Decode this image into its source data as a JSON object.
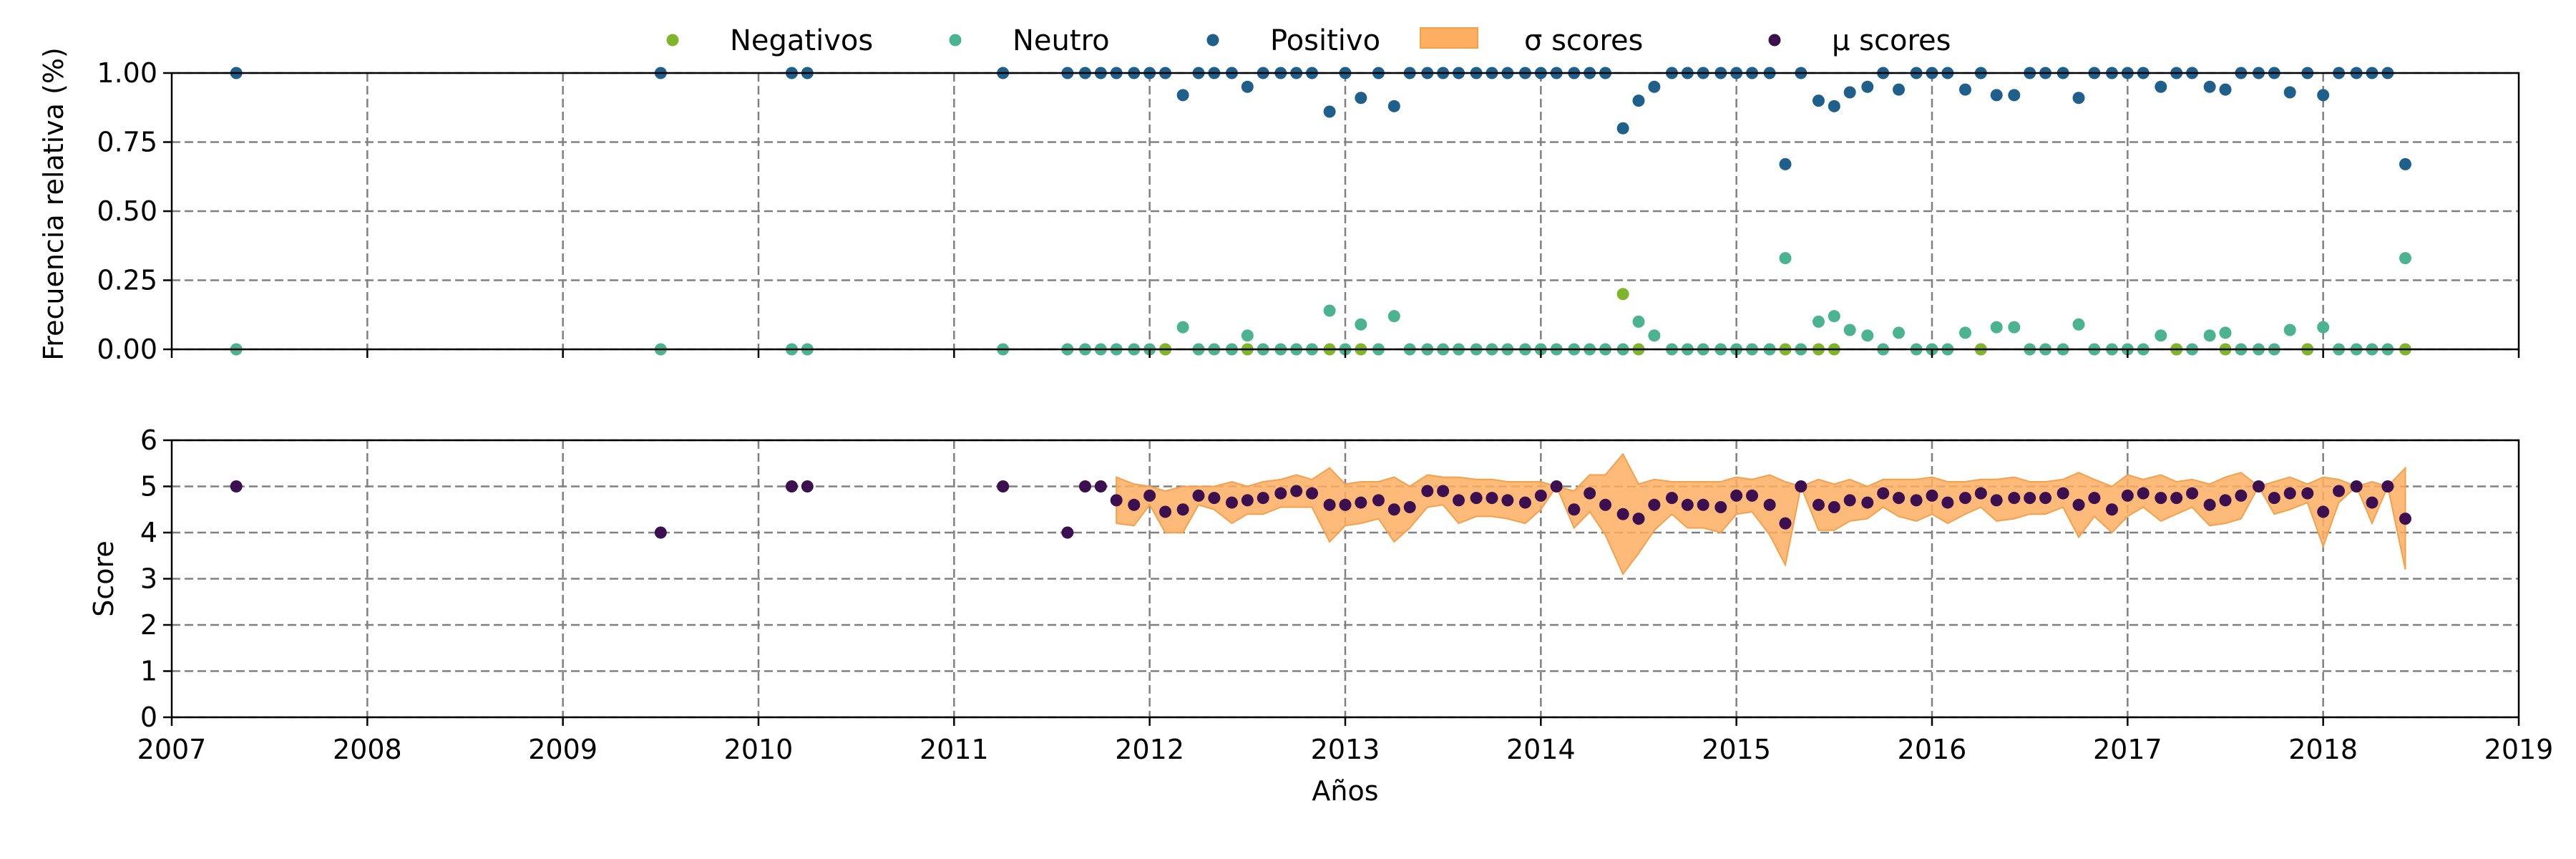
{
  "chart_data": [
    {
      "type": "scatter",
      "xlim": [
        2007,
        2019
      ],
      "ylim": [
        0,
        1
      ],
      "xlabel": "",
      "ylabel": "Frecuencia relativa (%)",
      "yticks": [
        "0.00",
        "0.25",
        "0.50",
        "0.75",
        "1.00"
      ],
      "ytick_values": [
        0,
        0.25,
        0.5,
        0.75,
        1.0
      ],
      "grid": true,
      "legend": {
        "placement": "top-center",
        "entries": [
          "Negativos",
          "Neutro",
          "Positivo",
          "σ scores",
          "μ scores"
        ]
      },
      "series": [
        {
          "name": "Positivo",
          "color": "#1f5f8b",
          "x": [
            2007.33,
            2009.5,
            2010.17,
            2010.25,
            2011.25,
            2011.58,
            2011.67,
            2011.75,
            2011.83,
            2011.92,
            2012.0,
            2012.08,
            2012.17,
            2012.25,
            2012.33,
            2012.42,
            2012.5,
            2012.58,
            2012.67,
            2012.75,
            2012.83,
            2012.92,
            2013.0,
            2013.08,
            2013.17,
            2013.25,
            2013.33,
            2013.42,
            2013.5,
            2013.58,
            2013.67,
            2013.75,
            2013.83,
            2013.92,
            2014.0,
            2014.08,
            2014.17,
            2014.25,
            2014.33,
            2014.42,
            2014.5,
            2014.58,
            2014.67,
            2014.75,
            2014.83,
            2014.92,
            2015.0,
            2015.08,
            2015.17,
            2015.25,
            2015.33,
            2015.42,
            2015.5,
            2015.58,
            2015.67,
            2015.75,
            2015.83,
            2015.92,
            2016.0,
            2016.08,
            2016.17,
            2016.25,
            2016.33,
            2016.42,
            2016.5,
            2016.58,
            2016.67,
            2016.75,
            2016.83,
            2016.92,
            2017.0,
            2017.08,
            2017.17,
            2017.25,
            2017.33,
            2017.42,
            2017.5,
            2017.58,
            2017.67,
            2017.75,
            2017.83,
            2017.92,
            2018.0,
            2018.08,
            2018.17,
            2018.25,
            2018.33,
            2018.42
          ],
          "y": [
            1,
            1,
            1,
            1,
            1,
            1,
            1,
            1,
            1,
            1,
            1,
            1,
            0.92,
            1,
            1,
            1,
            0.95,
            1,
            1,
            1,
            1,
            0.86,
            1,
            0.91,
            1,
            0.88,
            1,
            1,
            1,
            1,
            1,
            1,
            1,
            1,
            1,
            1,
            1,
            1,
            1,
            0.8,
            0.9,
            0.95,
            1,
            1,
            1,
            1,
            1,
            1,
            1,
            0.67,
            1,
            0.9,
            0.88,
            0.93,
            0.95,
            1,
            0.94,
            1,
            1,
            1,
            0.94,
            1,
            0.92,
            0.92,
            1,
            1,
            1,
            0.91,
            1,
            1,
            1,
            1,
            0.95,
            1,
            1,
            0.95,
            0.94,
            1,
            1,
            1,
            0.93,
            1,
            0.92,
            1,
            1,
            1,
            1,
            0.67
          ]
        },
        {
          "name": "Neutro",
          "color": "#4cb391",
          "x": [
            2007.33,
            2009.5,
            2010.17,
            2010.25,
            2011.25,
            2011.58,
            2011.67,
            2011.75,
            2011.83,
            2011.92,
            2012.0,
            2012.08,
            2012.17,
            2012.25,
            2012.33,
            2012.42,
            2012.5,
            2012.58,
            2012.67,
            2012.75,
            2012.83,
            2012.92,
            2013.0,
            2013.08,
            2013.17,
            2013.25,
            2013.33,
            2013.42,
            2013.5,
            2013.58,
            2013.67,
            2013.75,
            2013.83,
            2013.92,
            2014.0,
            2014.08,
            2014.17,
            2014.25,
            2014.33,
            2014.42,
            2014.5,
            2014.58,
            2014.67,
            2014.75,
            2014.83,
            2014.92,
            2015.0,
            2015.08,
            2015.17,
            2015.25,
            2015.33,
            2015.42,
            2015.5,
            2015.58,
            2015.67,
            2015.75,
            2015.83,
            2015.92,
            2016.0,
            2016.08,
            2016.17,
            2016.25,
            2016.33,
            2016.42,
            2016.5,
            2016.58,
            2016.67,
            2016.75,
            2016.83,
            2016.92,
            2017.0,
            2017.08,
            2017.17,
            2017.25,
            2017.33,
            2017.42,
            2017.5,
            2017.58,
            2017.67,
            2017.75,
            2017.83,
            2017.92,
            2018.0,
            2018.08,
            2018.17,
            2018.25,
            2018.33,
            2018.42
          ],
          "y": [
            0,
            0,
            0,
            0,
            0,
            0,
            0,
            0,
            0,
            0,
            0,
            0,
            0.08,
            0,
            0,
            0,
            0.05,
            0,
            0,
            0,
            0,
            0.14,
            0,
            0.09,
            0,
            0.12,
            0,
            0,
            0,
            0,
            0,
            0,
            0,
            0,
            0,
            0,
            0,
            0,
            0,
            0,
            0.1,
            0.05,
            0,
            0,
            0,
            0,
            0,
            0,
            0,
            0.33,
            0,
            0.1,
            0.12,
            0.07,
            0.05,
            0,
            0.06,
            0,
            0,
            0,
            0.06,
            0,
            0.08,
            0.08,
            0,
            0,
            0,
            0.09,
            0,
            0,
            0,
            0,
            0.05,
            0,
            0,
            0.05,
            0.06,
            0,
            0,
            0,
            0.07,
            0,
            0.08,
            0,
            0,
            0,
            0,
            0.33
          ]
        },
        {
          "name": "Negativos",
          "color": "#7fb52b",
          "x": [
            2012.08,
            2012.5,
            2012.92,
            2013.08,
            2014.42,
            2014.5,
            2015.25,
            2015.42,
            2015.5,
            2016.25,
            2017.25,
            2017.5,
            2017.92,
            2018.42
          ],
          "y": [
            0,
            0,
            0,
            0,
            0.2,
            0,
            0,
            0,
            0,
            0,
            0,
            0,
            0,
            0
          ]
        }
      ]
    },
    {
      "type": "line",
      "xlim": [
        2007,
        2019
      ],
      "ylim": [
        0,
        6
      ],
      "xlabel": "Años",
      "ylabel": "Score",
      "xticks": [
        "2007",
        "2008",
        "2009",
        "2010",
        "2011",
        "2012",
        "2013",
        "2014",
        "2015",
        "2016",
        "2017",
        "2018",
        "2019"
      ],
      "xtick_values": [
        2007,
        2008,
        2009,
        2010,
        2011,
        2012,
        2013,
        2014,
        2015,
        2016,
        2017,
        2018,
        2019
      ],
      "yticks": [
        "0",
        "1",
        "2",
        "3",
        "4",
        "5",
        "6"
      ],
      "ytick_values": [
        0,
        1,
        2,
        3,
        4,
        5,
        6
      ],
      "grid": true,
      "series": [
        {
          "name": "μ scores",
          "color": "#3b0f50",
          "x": [
            2007.33,
            2009.5,
            2010.17,
            2010.25,
            2011.25,
            2011.58,
            2011.67,
            2011.75,
            2011.83,
            2011.92,
            2012.0,
            2012.08,
            2012.17,
            2012.25,
            2012.33,
            2012.42,
            2012.5,
            2012.58,
            2012.67,
            2012.75,
            2012.83,
            2012.92,
            2013.0,
            2013.08,
            2013.17,
            2013.25,
            2013.33,
            2013.42,
            2013.5,
            2013.58,
            2013.67,
            2013.75,
            2013.83,
            2013.92,
            2014.0,
            2014.08,
            2014.17,
            2014.25,
            2014.33,
            2014.42,
            2014.5,
            2014.58,
            2014.67,
            2014.75,
            2014.83,
            2014.92,
            2015.0,
            2015.08,
            2015.17,
            2015.25,
            2015.33,
            2015.42,
            2015.5,
            2015.58,
            2015.67,
            2015.75,
            2015.83,
            2015.92,
            2016.0,
            2016.08,
            2016.17,
            2016.25,
            2016.33,
            2016.42,
            2016.5,
            2016.58,
            2016.67,
            2016.75,
            2016.83,
            2016.92,
            2017.0,
            2017.08,
            2017.17,
            2017.25,
            2017.33,
            2017.42,
            2017.5,
            2017.58,
            2017.67,
            2017.75,
            2017.83,
            2017.92,
            2018.0,
            2018.08,
            2018.17,
            2018.25,
            2018.33,
            2018.42
          ],
          "y": [
            5,
            4,
            5,
            5,
            5,
            4,
            5,
            5,
            4.7,
            4.6,
            4.8,
            4.45,
            4.5,
            4.8,
            4.75,
            4.65,
            4.7,
            4.75,
            4.85,
            4.9,
            4.85,
            4.6,
            4.6,
            4.65,
            4.7,
            4.5,
            4.55,
            4.9,
            4.9,
            4.7,
            4.75,
            4.75,
            4.7,
            4.65,
            4.8,
            5,
            4.5,
            4.85,
            4.6,
            4.4,
            4.3,
            4.6,
            4.75,
            4.6,
            4.6,
            4.55,
            4.8,
            4.8,
            4.6,
            4.2,
            5,
            4.6,
            4.55,
            4.7,
            4.65,
            4.85,
            4.75,
            4.7,
            4.8,
            4.65,
            4.75,
            4.85,
            4.7,
            4.75,
            4.75,
            4.75,
            4.85,
            4.6,
            4.75,
            4.5,
            4.8,
            4.85,
            4.75,
            4.75,
            4.85,
            4.6,
            4.7,
            4.8,
            5,
            4.75,
            4.85,
            4.85,
            4.45,
            4.9,
            5,
            4.65,
            5,
            4.3
          ]
        },
        {
          "name": "σ scores",
          "color": "#fdae61",
          "type": "area",
          "x": [
            2011.83,
            2011.92,
            2012.0,
            2012.08,
            2012.17,
            2012.25,
            2012.33,
            2012.42,
            2012.5,
            2012.58,
            2012.67,
            2012.75,
            2012.83,
            2012.92,
            2013.0,
            2013.08,
            2013.17,
            2013.25,
            2013.33,
            2013.42,
            2013.5,
            2013.58,
            2013.67,
            2013.75,
            2013.83,
            2013.92,
            2014.0,
            2014.08,
            2014.17,
            2014.25,
            2014.33,
            2014.42,
            2014.5,
            2014.58,
            2014.67,
            2014.75,
            2014.83,
            2014.92,
            2015.0,
            2015.08,
            2015.17,
            2015.25,
            2015.33,
            2015.42,
            2015.5,
            2015.58,
            2015.67,
            2015.75,
            2015.83,
            2015.92,
            2016.0,
            2016.08,
            2016.17,
            2016.25,
            2016.33,
            2016.42,
            2016.5,
            2016.58,
            2016.67,
            2016.75,
            2016.83,
            2016.92,
            2017.0,
            2017.08,
            2017.17,
            2017.25,
            2017.33,
            2017.42,
            2017.5,
            2017.58,
            2017.67,
            2017.75,
            2017.83,
            2017.92,
            2018.0,
            2018.08,
            2018.17,
            2018.25,
            2018.33,
            2018.42
          ],
          "lower": [
            4.2,
            4.15,
            4.6,
            4.0,
            4.0,
            4.6,
            4.5,
            4.2,
            4.4,
            4.4,
            4.55,
            4.55,
            4.55,
            3.8,
            4.15,
            4.2,
            4.3,
            3.8,
            4.1,
            4.55,
            4.6,
            4.2,
            4.35,
            4.35,
            4.3,
            4.2,
            4.5,
            5,
            4.1,
            4.45,
            3.95,
            3.1,
            3.55,
            4.05,
            4.4,
            4.1,
            4.1,
            4.0,
            4.4,
            4.45,
            3.95,
            3.3,
            5,
            4.05,
            4.05,
            4.25,
            4.3,
            4.55,
            4.35,
            4.25,
            4.4,
            4.2,
            4.4,
            4.55,
            4.25,
            4.3,
            4.4,
            4.4,
            4.55,
            3.9,
            4.35,
            4.0,
            4.35,
            4.55,
            4.25,
            4.4,
            4.55,
            4.15,
            4.2,
            4.3,
            5,
            4.4,
            4.5,
            4.65,
            3.7,
            4.65,
            5,
            4.2,
            5,
            3.2
          ]
        }
      ]
    }
  ]
}
